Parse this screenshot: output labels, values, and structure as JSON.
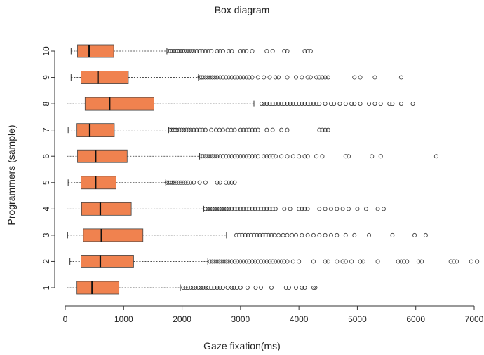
{
  "chart_data": {
    "type": "box",
    "title": "Box diagram",
    "xlabel": "Gaze fixation(ms)",
    "ylabel": "Programmers (sample)",
    "xlim": [
      0,
      7000
    ],
    "xticks": [
      0,
      1000,
      2000,
      3000,
      4000,
      5000,
      6000,
      7000
    ],
    "categories": [
      "1",
      "2",
      "3",
      "4",
      "5",
      "6",
      "7",
      "8",
      "9",
      "10"
    ],
    "box_color": "#f0824f",
    "boxes": [
      {
        "name": "1",
        "whisker_low": 30,
        "q1": 200,
        "median": 460,
        "q3": 920,
        "whisker_high": 1970,
        "outliers": [
          2020,
          2060,
          2100,
          2150,
          2190,
          2230,
          2280,
          2320,
          2360,
          2410,
          2450,
          2500,
          2550,
          2600,
          2650,
          2700,
          2780,
          2850,
          2890,
          2940,
          3000,
          3120,
          3260,
          3350,
          3530,
          3780,
          3830,
          3950,
          4050,
          4100,
          4250,
          4280
        ]
      },
      {
        "name": "2",
        "whisker_low": 80,
        "q1": 270,
        "median": 600,
        "q3": 1170,
        "whisker_high": 2440,
        "outliers": [
          2480,
          2520,
          2560,
          2600,
          2640,
          2680,
          2720,
          2760,
          2800,
          2850,
          2900,
          2950,
          3000,
          3050,
          3100,
          3150,
          3200,
          3250,
          3300,
          3350,
          3400,
          3450,
          3500,
          3550,
          3600,
          3650,
          3700,
          3750,
          3800,
          3900,
          4000,
          4250,
          4450,
          4500,
          4650,
          4750,
          4800,
          4900,
          5050,
          5100,
          5350,
          5700,
          5750,
          5800,
          5850,
          6050,
          6100,
          6600,
          6650,
          6700,
          6950,
          7050
        ]
      },
      {
        "name": "3",
        "whisker_low": 40,
        "q1": 310,
        "median": 620,
        "q3": 1330,
        "whisker_high": 2760,
        "outliers": [
          2930,
          2980,
          3030,
          3080,
          3130,
          3180,
          3230,
          3280,
          3330,
          3380,
          3430,
          3480,
          3530,
          3580,
          3650,
          3730,
          3800,
          3880,
          3950,
          4050,
          4150,
          4250,
          4350,
          4450,
          4550,
          4650,
          4800,
          4950,
          5200,
          5600,
          5980,
          6170
        ]
      },
      {
        "name": "4",
        "whisker_low": 30,
        "q1": 280,
        "median": 600,
        "q3": 1130,
        "whisker_high": 2370,
        "outliers": [
          2400,
          2440,
          2480,
          2520,
          2560,
          2600,
          2640,
          2680,
          2720,
          2760,
          2800,
          2850,
          2900,
          2950,
          3000,
          3050,
          3100,
          3150,
          3200,
          3250,
          3300,
          3350,
          3400,
          3450,
          3500,
          3550,
          3600,
          3750,
          3850,
          4000,
          4050,
          4100,
          4150,
          4350,
          4450,
          4550,
          4650,
          4750,
          4850,
          5000,
          5150,
          5350,
          5450
        ]
      },
      {
        "name": "5",
        "whisker_low": 50,
        "q1": 270,
        "median": 520,
        "q3": 870,
        "whisker_high": 1720,
        "outliers": [
          1740,
          1770,
          1800,
          1830,
          1860,
          1900,
          1940,
          1980,
          2020,
          2060,
          2100,
          2150,
          2200,
          2300,
          2400,
          2600,
          2650,
          2750,
          2800,
          2850,
          2900
        ]
      },
      {
        "name": "6",
        "whisker_low": 30,
        "q1": 210,
        "median": 520,
        "q3": 1060,
        "whisker_high": 2300,
        "outliers": [
          2330,
          2360,
          2400,
          2440,
          2480,
          2520,
          2560,
          2600,
          2650,
          2700,
          2750,
          2800,
          2850,
          2900,
          2950,
          3000,
          3050,
          3100,
          3150,
          3200,
          3250,
          3300,
          3400,
          3450,
          3500,
          3550,
          3600,
          3700,
          3800,
          3900,
          4000,
          4100,
          4150,
          4300,
          4400,
          4800,
          4850,
          5250,
          5400,
          6350
        ]
      },
      {
        "name": "7",
        "whisker_low": 50,
        "q1": 200,
        "median": 420,
        "q3": 840,
        "whisker_high": 1770,
        "outliers": [
          1790,
          1820,
          1850,
          1880,
          1910,
          1950,
          1990,
          2030,
          2070,
          2110,
          2150,
          2200,
          2250,
          2300,
          2350,
          2400,
          2500,
          2580,
          2640,
          2700,
          2780,
          2840,
          2900,
          3000,
          3050,
          3100,
          3150,
          3200,
          3250,
          3300,
          3450,
          3550,
          3700,
          3800,
          4350,
          4400,
          4450,
          4500
        ]
      },
      {
        "name": "8",
        "whisker_low": 30,
        "q1": 340,
        "median": 760,
        "q3": 1520,
        "whisker_high": 3230,
        "outliers": [
          3360,
          3400,
          3450,
          3500,
          3550,
          3600,
          3650,
          3700,
          3750,
          3800,
          3850,
          3900,
          3950,
          4000,
          4050,
          4100,
          4150,
          4200,
          4250,
          4300,
          4350,
          4450,
          4550,
          4600,
          4700,
          4800,
          4900,
          4950,
          5050,
          5200,
          5300,
          5400,
          5550,
          5600,
          5750,
          5950
        ]
      },
      {
        "name": "9",
        "whisker_low": 100,
        "q1": 270,
        "median": 560,
        "q3": 1080,
        "whisker_high": 2280,
        "outliers": [
          2300,
          2330,
          2360,
          2400,
          2440,
          2480,
          2520,
          2560,
          2600,
          2650,
          2700,
          2750,
          2800,
          2850,
          2900,
          2950,
          3000,
          3050,
          3100,
          3150,
          3200,
          3300,
          3400,
          3500,
          3600,
          3650,
          3800,
          3950,
          4050,
          4150,
          4200,
          4300,
          4350,
          4400,
          4450,
          4500,
          4950,
          5050,
          5300,
          5750
        ]
      },
      {
        "name": "10",
        "whisker_low": 100,
        "q1": 210,
        "median": 410,
        "q3": 830,
        "whisker_high": 1740,
        "outliers": [
          1770,
          1800,
          1830,
          1860,
          1890,
          1920,
          1950,
          1980,
          2010,
          2040,
          2080,
          2120,
          2160,
          2200,
          2250,
          2300,
          2350,
          2400,
          2450,
          2500,
          2600,
          2650,
          2700,
          2800,
          2850,
          3000,
          3050,
          3100,
          3200,
          3450,
          3550,
          3750,
          3800,
          4100,
          4150,
          4200
        ]
      }
    ]
  }
}
